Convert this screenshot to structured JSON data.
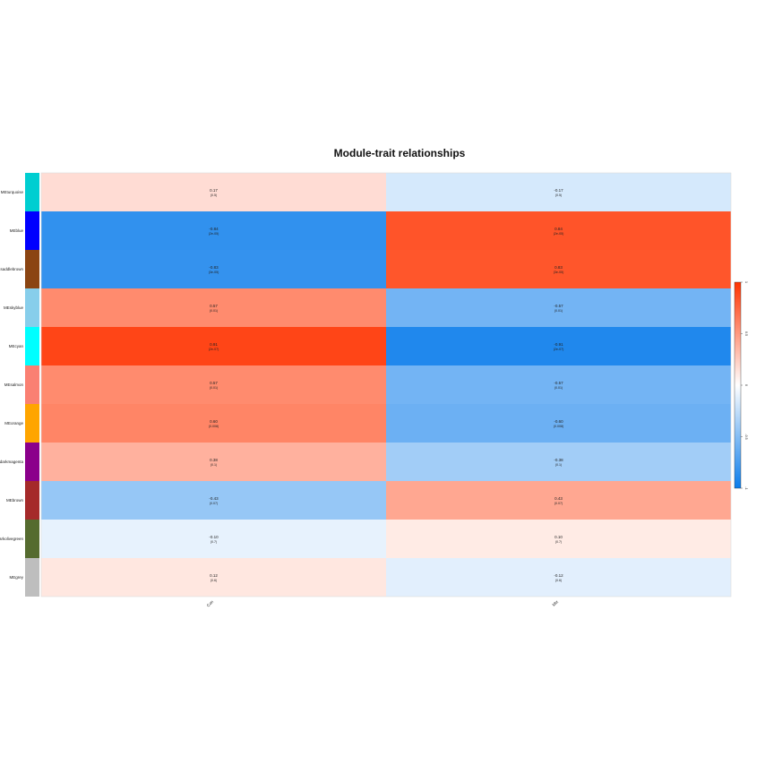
{
  "chart_data": {
    "type": "heatmap",
    "title": "Module-trait relationships",
    "columns": [
      "Con",
      "Mtx"
    ],
    "rows": [
      {
        "label": "MEturquoise",
        "color": "#00CED1",
        "values": [
          0.17,
          -0.17
        ],
        "pvalues": [
          "(0.5)",
          "(0.5)"
        ]
      },
      {
        "label": "MEblue",
        "color": "#0000FF",
        "values": [
          -0.84,
          0.84
        ],
        "pvalues": [
          "(2e-05)",
          "(2e-05)"
        ]
      },
      {
        "label": "MEsaddlebrown",
        "color": "#8B4513",
        "values": [
          -0.83,
          0.83
        ],
        "pvalues": [
          "(3e-05)",
          "(3e-05)"
        ]
      },
      {
        "label": "MEskyblue",
        "color": "#87CEEB",
        "values": [
          0.57,
          -0.57
        ],
        "pvalues": [
          "(0.01)",
          "(0.01)"
        ]
      },
      {
        "label": "MEcyan",
        "color": "#00FFFF",
        "values": [
          0.91,
          -0.91
        ],
        "pvalues": [
          "(2e-07)",
          "(2e-07)"
        ]
      },
      {
        "label": "MEsalmon",
        "color": "#FA8072",
        "values": [
          0.57,
          -0.57
        ],
        "pvalues": [
          "(0.01)",
          "(0.01)"
        ]
      },
      {
        "label": "MEorange",
        "color": "#FFA500",
        "values": [
          0.6,
          -0.6
        ],
        "pvalues": [
          "(0.008)",
          "(0.008)"
        ]
      },
      {
        "label": "MEdarkmagenta",
        "color": "#8B008B",
        "values": [
          0.38,
          -0.38
        ],
        "pvalues": [
          "(0.1)",
          "(0.1)"
        ]
      },
      {
        "label": "MEbrown",
        "color": "#A52A2A",
        "values": [
          -0.43,
          0.43
        ],
        "pvalues": [
          "(0.07)",
          "(0.07)"
        ]
      },
      {
        "label": "MEdarkolivegreen",
        "color": "#556B2F",
        "values": [
          -0.1,
          0.1
        ],
        "pvalues": [
          "(0.7)",
          "(0.7)"
        ]
      },
      {
        "label": "MEgrey",
        "color": "#BEBEBE",
        "values": [
          0.12,
          -0.12
        ],
        "pvalues": [
          "(0.6)",
          "(0.6)"
        ]
      }
    ],
    "colorscale": {
      "min": -1,
      "max": 1,
      "low": "#0A7CEB",
      "mid": "#FFFFFF",
      "high": "#FF3300"
    },
    "colorbar_ticks": [
      -1,
      -0.5,
      0,
      0.5,
      1
    ]
  }
}
